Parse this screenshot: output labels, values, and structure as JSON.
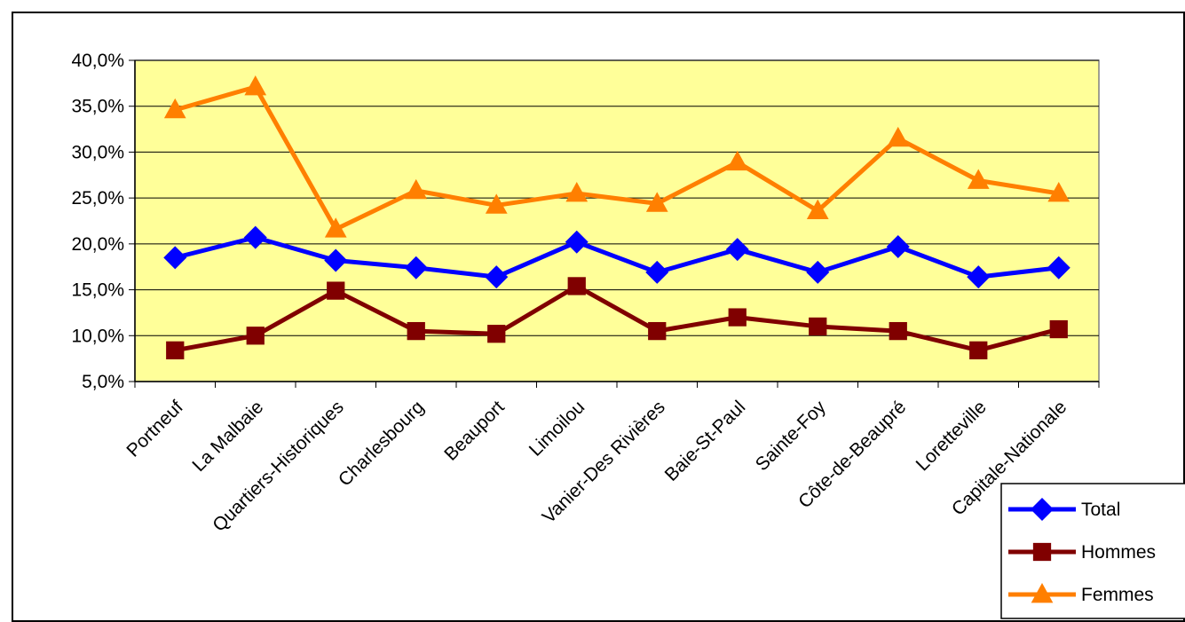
{
  "chart_data": {
    "type": "line",
    "categories": [
      "Portneuf",
      "La Malbaie",
      "Quartiers-Historiques",
      "Charlesbourg",
      "Beauport",
      "Limoilou",
      "Vanier-Des Rivières",
      "Baie-St-Paul",
      "Sainte-Foy",
      "Côte-de-Beaupré",
      "Loretteville",
      "Capitale-Nationale"
    ],
    "series": [
      {
        "name": "Total",
        "color": "#0000ff",
        "marker": "diamond",
        "values": [
          18.5,
          20.7,
          18.2,
          17.4,
          16.4,
          20.2,
          16.9,
          19.4,
          16.9,
          19.7,
          16.4,
          17.4
        ]
      },
      {
        "name": "Hommes",
        "color": "#800000",
        "marker": "square",
        "values": [
          8.4,
          10.0,
          14.9,
          10.5,
          10.2,
          15.4,
          10.5,
          12.0,
          11.0,
          10.5,
          8.4,
          10.7
        ]
      },
      {
        "name": "Femmes",
        "color": "#ff7f00",
        "marker": "triangle",
        "values": [
          34.6,
          37.1,
          21.6,
          25.8,
          24.2,
          25.5,
          24.4,
          28.9,
          23.6,
          31.5,
          26.9,
          25.5
        ]
      }
    ],
    "ylim": [
      5,
      40
    ],
    "yticks": [
      "5,0%",
      "10,0%",
      "15,0%",
      "20,0%",
      "25,0%",
      "30,0%",
      "35,0%",
      "40,0%"
    ],
    "grid": true,
    "plot_background": "#ffff99",
    "legend_position": "bottom-right",
    "title": "",
    "xlabel": "",
    "ylabel": ""
  }
}
